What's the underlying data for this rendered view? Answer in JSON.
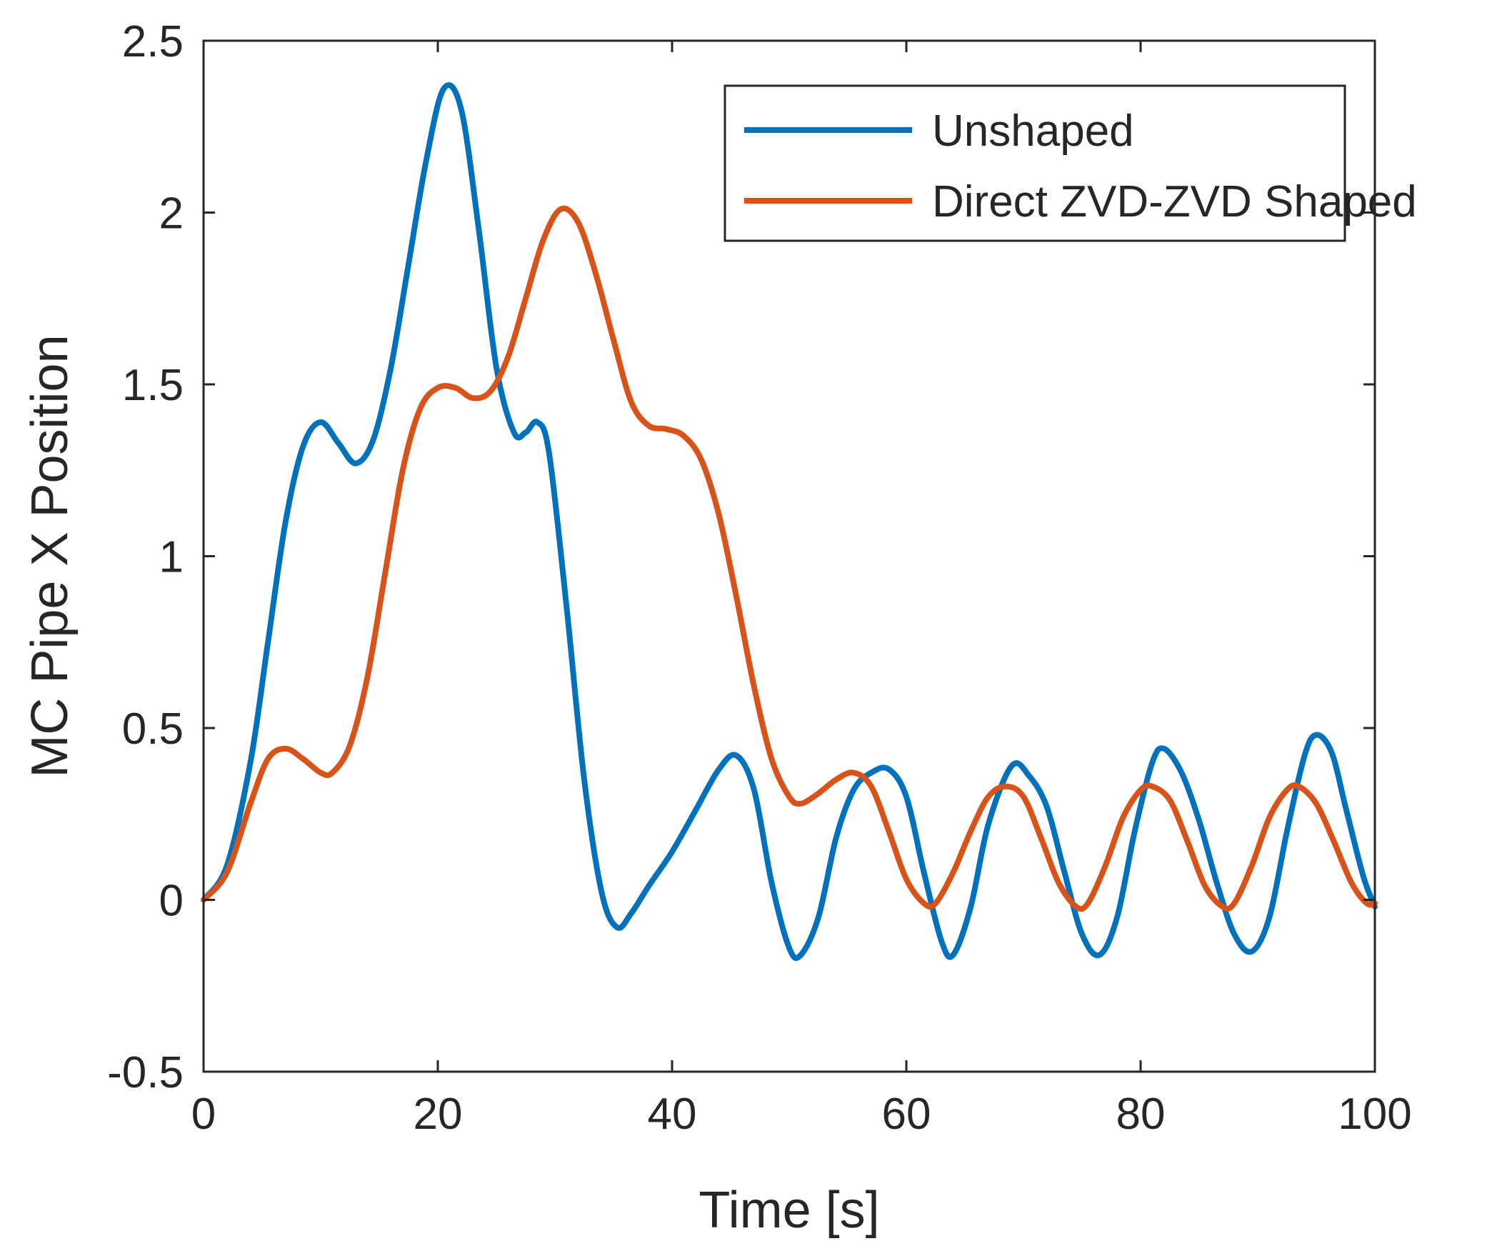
{
  "chart_data": {
    "type": "line",
    "title": "",
    "xlabel": "Time [s]",
    "ylabel": "MC Pipe X Position",
    "xlim": [
      0,
      100
    ],
    "ylim": [
      -0.5,
      2.5
    ],
    "xticks": [
      0,
      20,
      40,
      60,
      80,
      100
    ],
    "xtick_labels": [
      "0",
      "20",
      "40",
      "60",
      "80",
      "100"
    ],
    "yticks": [
      -0.5,
      0,
      0.5,
      1,
      1.5,
      2,
      2.5
    ],
    "ytick_labels": [
      "-0.5",
      "0",
      "0.5",
      "1",
      "1.5",
      "2",
      "2.5"
    ],
    "grid": false,
    "legend_position": "top-right",
    "colors": {
      "axis": "#262626",
      "background": "#ffffff"
    },
    "series": [
      {
        "name": "Unshaped",
        "color": "#0072BD",
        "points": [
          [
            0,
            0
          ],
          [
            2,
            0.1
          ],
          [
            4,
            0.4
          ],
          [
            5.5,
            0.75
          ],
          [
            7,
            1.1
          ],
          [
            8.5,
            1.32
          ],
          [
            10,
            1.39
          ],
          [
            11.5,
            1.33
          ],
          [
            13,
            1.27
          ],
          [
            14.5,
            1.34
          ],
          [
            16,
            1.55
          ],
          [
            17.5,
            1.85
          ],
          [
            19,
            2.15
          ],
          [
            20.5,
            2.36
          ],
          [
            22,
            2.3
          ],
          [
            23.5,
            1.95
          ],
          [
            25,
            1.55
          ],
          [
            26.5,
            1.36
          ],
          [
            27.5,
            1.36
          ],
          [
            28.5,
            1.39
          ],
          [
            29.5,
            1.3
          ],
          [
            31,
            0.85
          ],
          [
            32.5,
            0.35
          ],
          [
            34,
            0.02
          ],
          [
            35.3,
            -0.08
          ],
          [
            36.5,
            -0.04
          ],
          [
            38,
            0.04
          ],
          [
            40,
            0.14
          ],
          [
            42,
            0.26
          ],
          [
            44,
            0.38
          ],
          [
            45.5,
            0.42
          ],
          [
            47,
            0.32
          ],
          [
            48.5,
            0.05
          ],
          [
            50,
            -0.14
          ],
          [
            51,
            -0.16
          ],
          [
            52.5,
            -0.05
          ],
          [
            54,
            0.18
          ],
          [
            55.5,
            0.32
          ],
          [
            57,
            0.37
          ],
          [
            58.5,
            0.38
          ],
          [
            60,
            0.3
          ],
          [
            61.5,
            0.08
          ],
          [
            63,
            -0.12
          ],
          [
            64,
            -0.16
          ],
          [
            65.5,
            -0.02
          ],
          [
            67,
            0.22
          ],
          [
            69,
            0.39
          ],
          [
            70.5,
            0.36
          ],
          [
            72,
            0.27
          ],
          [
            73.5,
            0.08
          ],
          [
            75,
            -0.1
          ],
          [
            76.5,
            -0.16
          ],
          [
            78,
            -0.05
          ],
          [
            79.5,
            0.2
          ],
          [
            81,
            0.4
          ],
          [
            82,
            0.44
          ],
          [
            83.5,
            0.37
          ],
          [
            85,
            0.23
          ],
          [
            86.5,
            0.05
          ],
          [
            88,
            -0.1
          ],
          [
            89.5,
            -0.15
          ],
          [
            91,
            -0.05
          ],
          [
            92.5,
            0.2
          ],
          [
            94,
            0.42
          ],
          [
            95,
            0.48
          ],
          [
            96.3,
            0.43
          ],
          [
            97.5,
            0.27
          ],
          [
            99,
            0.07
          ],
          [
            100,
            -0.02
          ]
        ]
      },
      {
        "name": "Direct ZVD-ZVD Shaped",
        "color": "#D95319",
        "points": [
          [
            0,
            0
          ],
          [
            2,
            0.08
          ],
          [
            4,
            0.28
          ],
          [
            5.5,
            0.41
          ],
          [
            7,
            0.44
          ],
          [
            8.5,
            0.41
          ],
          [
            10,
            0.37
          ],
          [
            11,
            0.37
          ],
          [
            12.5,
            0.45
          ],
          [
            14,
            0.65
          ],
          [
            15.5,
            0.95
          ],
          [
            17,
            1.25
          ],
          [
            18.5,
            1.43
          ],
          [
            20,
            1.49
          ],
          [
            21.5,
            1.49
          ],
          [
            23,
            1.46
          ],
          [
            24.5,
            1.48
          ],
          [
            26,
            1.58
          ],
          [
            27.5,
            1.75
          ],
          [
            29,
            1.92
          ],
          [
            30.5,
            2.01
          ],
          [
            32,
            1.97
          ],
          [
            33.5,
            1.82
          ],
          [
            35,
            1.63
          ],
          [
            36.5,
            1.45
          ],
          [
            38,
            1.38
          ],
          [
            39.5,
            1.37
          ],
          [
            41,
            1.35
          ],
          [
            42.5,
            1.28
          ],
          [
            44,
            1.12
          ],
          [
            45.5,
            0.88
          ],
          [
            47,
            0.62
          ],
          [
            48.5,
            0.41
          ],
          [
            50,
            0.3
          ],
          [
            51,
            0.28
          ],
          [
            52.5,
            0.31
          ],
          [
            54,
            0.35
          ],
          [
            55.5,
            0.37
          ],
          [
            57,
            0.33
          ],
          [
            58.5,
            0.2
          ],
          [
            60,
            0.06
          ],
          [
            61.5,
            -0.01
          ],
          [
            62.5,
            -0.01
          ],
          [
            64,
            0.08
          ],
          [
            65.5,
            0.2
          ],
          [
            67,
            0.3
          ],
          [
            68.5,
            0.33
          ],
          [
            70,
            0.3
          ],
          [
            71.5,
            0.18
          ],
          [
            73,
            0.05
          ],
          [
            74.5,
            -0.02
          ],
          [
            75.5,
            -0.01
          ],
          [
            77,
            0.1
          ],
          [
            78.5,
            0.24
          ],
          [
            80,
            0.32
          ],
          [
            81,
            0.33
          ],
          [
            82.5,
            0.29
          ],
          [
            84,
            0.17
          ],
          [
            85.5,
            0.04
          ],
          [
            87,
            -0.02
          ],
          [
            88,
            -0.01
          ],
          [
            89.5,
            0.1
          ],
          [
            91,
            0.24
          ],
          [
            92.5,
            0.32
          ],
          [
            93.5,
            0.33
          ],
          [
            95,
            0.28
          ],
          [
            96.5,
            0.17
          ],
          [
            98,
            0.05
          ],
          [
            99.3,
            -0.01
          ],
          [
            100,
            -0.01
          ]
        ]
      }
    ]
  }
}
